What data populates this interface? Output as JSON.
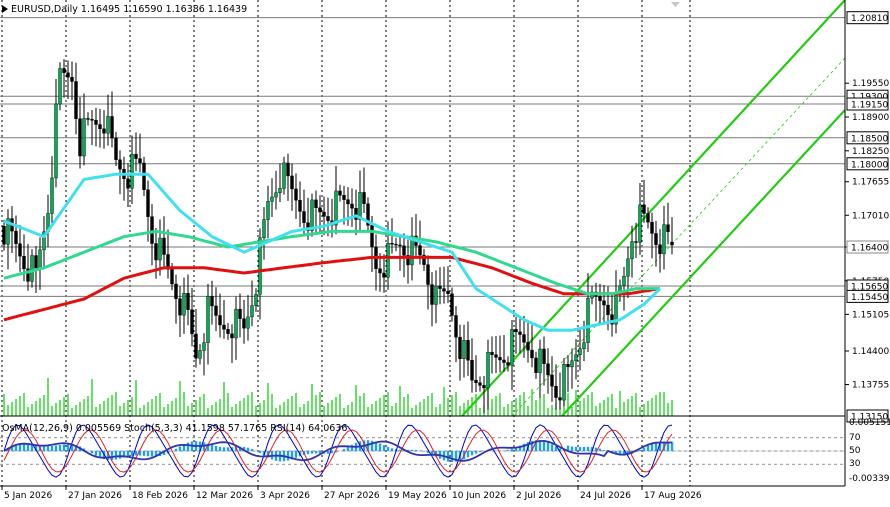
{
  "header": {
    "symbol_line": "EURUSD,Daily  1.16495 1.16590 1.16386 1.16439"
  },
  "indicator_header": {
    "text": "OsMA(12,26,9) 0.005569  Stoch(5,3,3) 41.1598 57.1765  RSI(14) 64.0636"
  },
  "chart_data": {
    "type": "candlestick",
    "symbol": "EURUSD",
    "timeframe": "Daily",
    "ohlc_current": {
      "open": 1.16495,
      "high": 1.1659,
      "low": 1.16386,
      "close": 1.16439
    },
    "ylim": [
      1.1315,
      1.2115
    ],
    "y_ticks": [
      "1.19550",
      "1.18900",
      "1.18250",
      "1.17655",
      "1.17010",
      "1.16400",
      "1.15750",
      "1.15105",
      "1.14400",
      "1.13755"
    ],
    "price_levels": [
      {
        "label": "1.20810",
        "value": 1.2081
      },
      {
        "label": "1.19300",
        "value": 1.193
      },
      {
        "label": "1.19150",
        "value": 1.1915
      },
      {
        "label": "1.18500",
        "value": 1.185
      },
      {
        "label": "1.18000",
        "value": 1.18
      },
      {
        "label": "1.16400",
        "value": 1.164
      },
      {
        "label": "1.15650",
        "value": 1.1565
      },
      {
        "label": "1.15450",
        "value": 1.1545
      },
      {
        "label": "1.13150",
        "value": 1.1315
      }
    ],
    "x_labels": [
      "5 Jan 2026",
      "27 Jan 2026",
      "18 Feb 2026",
      "12 Mar 2026",
      "3 Apr 2026",
      "27 Apr 2026",
      "19 May 2026",
      "10 Jun 2026",
      "2 Jul 2026",
      "24 Jul 2026",
      "17 Aug 2026"
    ],
    "x_label_index": [
      0,
      16,
      32,
      48,
      64,
      80,
      96,
      112,
      128,
      144,
      160
    ],
    "num_bars": 168,
    "close_path": [
      [
        0,
        1.168
      ],
      [
        4,
        1.163
      ],
      [
        8,
        1.158
      ],
      [
        11,
        1.172
      ],
      [
        14,
        1.196
      ],
      [
        17,
        1.197
      ],
      [
        19,
        1.185
      ],
      [
        22,
        1.188
      ],
      [
        25,
        1.189
      ],
      [
        28,
        1.18
      ],
      [
        31,
        1.178
      ],
      [
        34,
        1.179
      ],
      [
        37,
        1.167
      ],
      [
        40,
        1.161
      ],
      [
        43,
        1.156
      ],
      [
        46,
        1.15
      ],
      [
        48,
        1.143
      ],
      [
        51,
        1.151
      ],
      [
        54,
        1.149
      ],
      [
        57,
        1.15
      ],
      [
        60,
        1.148
      ],
      [
        63,
        1.158
      ],
      [
        66,
        1.172
      ],
      [
        69,
        1.178
      ],
      [
        72,
        1.174
      ],
      [
        75,
        1.171
      ],
      [
        78,
        1.17
      ],
      [
        81,
        1.171
      ],
      [
        84,
        1.172
      ],
      [
        87,
        1.173
      ],
      [
        90,
        1.17
      ],
      [
        93,
        1.161
      ],
      [
        96,
        1.162
      ],
      [
        99,
        1.165
      ],
      [
        102,
        1.163
      ],
      [
        105,
        1.161
      ],
      [
        108,
        1.153
      ],
      [
        111,
        1.155
      ],
      [
        114,
        1.146
      ],
      [
        117,
        1.138
      ],
      [
        120,
        1.14
      ],
      [
        123,
        1.142
      ],
      [
        126,
        1.144
      ],
      [
        129,
        1.146
      ],
      [
        132,
        1.145
      ],
      [
        135,
        1.14
      ],
      [
        138,
        1.137
      ],
      [
        141,
        1.139
      ],
      [
        144,
        1.146
      ],
      [
        147,
        1.153
      ],
      [
        150,
        1.154
      ],
      [
        153,
        1.152
      ],
      [
        155,
        1.158
      ],
      [
        157,
        1.167
      ],
      [
        159,
        1.169
      ],
      [
        161,
        1.168
      ],
      [
        163,
        1.166
      ],
      [
        165,
        1.1648
      ],
      [
        167,
        1.1644
      ]
    ],
    "ema_cyan_path": [
      [
        0,
        1.169
      ],
      [
        10,
        1.166
      ],
      [
        20,
        1.177
      ],
      [
        28,
        1.178
      ],
      [
        36,
        1.178
      ],
      [
        44,
        1.171
      ],
      [
        52,
        1.166
      ],
      [
        60,
        1.163
      ],
      [
        66,
        1.165
      ],
      [
        72,
        1.167
      ],
      [
        80,
        1.168
      ],
      [
        88,
        1.17
      ],
      [
        96,
        1.167
      ],
      [
        104,
        1.165
      ],
      [
        112,
        1.163
      ],
      [
        118,
        1.156
      ],
      [
        124,
        1.153
      ],
      [
        130,
        1.15
      ],
      [
        136,
        1.148
      ],
      [
        142,
        1.148
      ],
      [
        148,
        1.149
      ],
      [
        154,
        1.15
      ],
      [
        160,
        1.153
      ],
      [
        164,
        1.156
      ]
    ],
    "ema_green_path": [
      [
        0,
        1.158
      ],
      [
        10,
        1.16
      ],
      [
        20,
        1.163
      ],
      [
        30,
        1.166
      ],
      [
        38,
        1.167
      ],
      [
        46,
        1.166
      ],
      [
        56,
        1.164
      ],
      [
        64,
        1.165
      ],
      [
        72,
        1.166
      ],
      [
        82,
        1.167
      ],
      [
        92,
        1.167
      ],
      [
        100,
        1.166
      ],
      [
        108,
        1.165
      ],
      [
        118,
        1.163
      ],
      [
        128,
        1.16
      ],
      [
        138,
        1.157
      ],
      [
        146,
        1.155
      ],
      [
        152,
        1.155
      ],
      [
        158,
        1.156
      ],
      [
        164,
        1.156
      ]
    ],
    "ema_red_path": [
      [
        0,
        1.15
      ],
      [
        10,
        1.152
      ],
      [
        20,
        1.154
      ],
      [
        30,
        1.158
      ],
      [
        40,
        1.16
      ],
      [
        50,
        1.16
      ],
      [
        60,
        1.159
      ],
      [
        70,
        1.16
      ],
      [
        80,
        1.161
      ],
      [
        92,
        1.162
      ],
      [
        102,
        1.162
      ],
      [
        112,
        1.162
      ],
      [
        122,
        1.16
      ],
      [
        132,
        1.157
      ],
      [
        140,
        1.155
      ],
      [
        148,
        1.155
      ],
      [
        156,
        1.155
      ],
      [
        164,
        1.156
      ]
    ],
    "indicators": {
      "osma": {
        "value": 0.005569,
        "params": "12,26,9"
      },
      "stoch": {
        "k": 41.1598,
        "d": 57.1765,
        "params": "5,3,3"
      },
      "rsi": {
        "value": 64.0636,
        "period": 14
      },
      "right_labels": [
        "0.0051511",
        "70",
        "50",
        "30",
        "-0.00339"
      ],
      "levels": [
        70,
        50,
        30
      ]
    },
    "colors": {
      "bull_candle": "#00b050",
      "bear_candle": "#000000",
      "ema_cyan": "#40e0f0",
      "ema_green": "#30d890",
      "ema_red": "#e01010",
      "channel": "#22cc11",
      "volume": "#00cc00",
      "osma_hist": "#1ea0f0",
      "stoch_k": "#0000cc",
      "stoch_d": "#dd2222",
      "rsi": "#3333aa",
      "level_line": "#505050",
      "grid": "#000000"
    }
  }
}
